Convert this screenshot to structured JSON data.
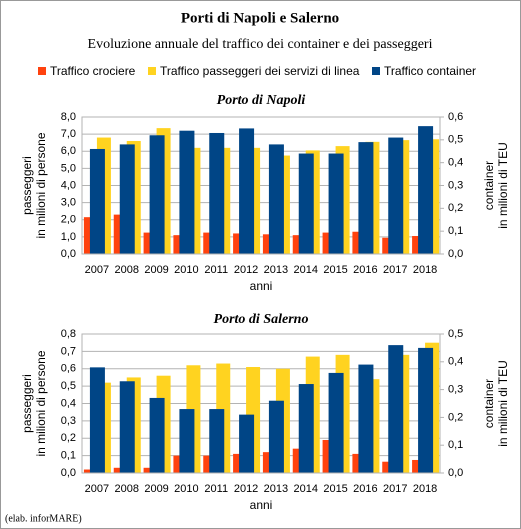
{
  "title": "Porti di Napoli e Salerno",
  "subtitle": "Evoluzione annuale del traffico dei container e dei passeggeri",
  "source": "(elab. inforMARE)",
  "chart_data": [
    {
      "type": "bar",
      "title": "Porto di Napoli",
      "categories": [
        "2007",
        "2008",
        "2009",
        "2010",
        "2011",
        "2012",
        "2013",
        "2014",
        "2015",
        "2016",
        "2017",
        "2018"
      ],
      "xlabel": "anni",
      "ylabel": [
        "passeggeri",
        "in milioni di persone"
      ],
      "y2label": [
        "container",
        "in milioni di TEU"
      ],
      "series": [
        {
          "name": "Traffico crociere",
          "color": "#ff420e",
          "values": [
            2.15,
            2.3,
            1.25,
            1.1,
            1.25,
            1.2,
            1.15,
            1.1,
            1.25,
            1.3,
            0.95,
            1.05
          ]
        },
        {
          "name": "Traffico passeggeri dei servizi di linea",
          "color": "#ffd320",
          "values": [
            6.8,
            6.6,
            7.35,
            6.2,
            6.2,
            6.2,
            5.75,
            6.05,
            6.3,
            6.55,
            6.65,
            6.7
          ]
        },
        {
          "name": "Traffico container",
          "color": "#004586",
          "axis": "y2",
          "values": [
            0.46,
            0.48,
            0.52,
            0.54,
            0.53,
            0.55,
            0.48,
            0.44,
            0.44,
            0.49,
            0.51,
            0.56
          ]
        }
      ],
      "ylim": [
        0,
        8
      ],
      "yticks": [
        {
          "value": 0,
          "label": "0,0"
        },
        {
          "value": 1,
          "label": "1,0"
        },
        {
          "value": 2,
          "label": "2,0"
        },
        {
          "value": 3,
          "label": "3,0"
        },
        {
          "value": 4,
          "label": "4,0"
        },
        {
          "value": 5,
          "label": "5,0"
        },
        {
          "value": 6,
          "label": "6,0"
        },
        {
          "value": 7,
          "label": "7,0"
        },
        {
          "value": 8,
          "label": "8,0"
        }
      ],
      "y2lim": [
        0,
        0.6
      ],
      "y2ticks": [
        {
          "value": 0,
          "label": "0,0"
        },
        {
          "value": 0.1,
          "label": "0,1"
        },
        {
          "value": 0.2,
          "label": "0,2"
        },
        {
          "value": 0.3,
          "label": "0,3"
        },
        {
          "value": 0.4,
          "label": "0,4"
        },
        {
          "value": 0.5,
          "label": "0,5"
        },
        {
          "value": 0.6,
          "label": "0,6"
        }
      ],
      "grid": true
    },
    {
      "type": "bar",
      "title": "Porto di Salerno",
      "categories": [
        "2007",
        "2008",
        "2009",
        "2010",
        "2011",
        "2012",
        "2013",
        "2014",
        "2015",
        "2016",
        "2017",
        "2018"
      ],
      "xlabel": "anni",
      "ylabel": [
        "passeggeri",
        "in milioni di persone"
      ],
      "y2label": [
        "container",
        "in milioni di TEU"
      ],
      "series": [
        {
          "name": "Traffico crociere",
          "color": "#ff420e",
          "values": [
            0.02,
            0.03,
            0.03,
            0.1,
            0.1,
            0.11,
            0.12,
            0.14,
            0.19,
            0.11,
            0.065,
            0.075
          ]
        },
        {
          "name": "Traffico passeggeri dei servizi di linea",
          "color": "#ffd320",
          "values": [
            0.52,
            0.55,
            0.56,
            0.62,
            0.63,
            0.61,
            0.6,
            0.67,
            0.68,
            0.54,
            0.68,
            0.75
          ]
        },
        {
          "name": "Traffico container",
          "color": "#004586",
          "axis": "y2",
          "values": [
            0.38,
            0.33,
            0.27,
            0.23,
            0.23,
            0.21,
            0.26,
            0.32,
            0.36,
            0.39,
            0.46,
            0.45
          ]
        }
      ],
      "ylim": [
        0,
        0.8
      ],
      "yticks": [
        {
          "value": 0,
          "label": "0,0"
        },
        {
          "value": 0.1,
          "label": "0,1"
        },
        {
          "value": 0.2,
          "label": "0,2"
        },
        {
          "value": 0.3,
          "label": "0,3"
        },
        {
          "value": 0.4,
          "label": "0,4"
        },
        {
          "value": 0.5,
          "label": "0,5"
        },
        {
          "value": 0.6,
          "label": "0,6"
        },
        {
          "value": 0.7,
          "label": "0,7"
        },
        {
          "value": 0.8,
          "label": "0,8"
        }
      ],
      "y2lim": [
        0,
        0.5
      ],
      "y2ticks": [
        {
          "value": 0,
          "label": "0,0"
        },
        {
          "value": 0.1,
          "label": "0,1"
        },
        {
          "value": 0.2,
          "label": "0,2"
        },
        {
          "value": 0.3,
          "label": "0,3"
        },
        {
          "value": 0.4,
          "label": "0,4"
        },
        {
          "value": 0.5,
          "label": "0,5"
        }
      ],
      "grid": true
    }
  ]
}
